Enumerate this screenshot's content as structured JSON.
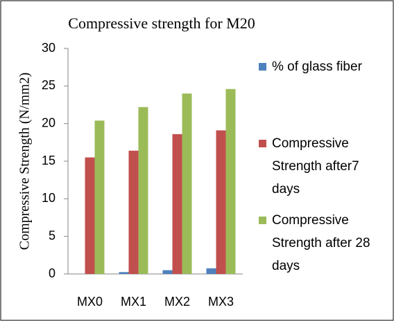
{
  "chart_data": {
    "type": "bar",
    "title": "Compressive strength for M20",
    "y_label": "Compressive Strength (N/mm2)",
    "categories": [
      "MX0",
      "MX1",
      "MX2",
      "MX3"
    ],
    "series": [
      {
        "name": "% of glass fiber",
        "color": "#4f81bd",
        "values": [
          0,
          0.25,
          0.5,
          0.75
        ]
      },
      {
        "name": "Compressive Strength after7 days",
        "color": "#c0504d",
        "values": [
          15.5,
          16.4,
          18.6,
          19.1
        ]
      },
      {
        "name": "Compressive Strength after 28 days",
        "color": "#9bbb59",
        "values": [
          20.4,
          22.2,
          24.0,
          24.6
        ]
      }
    ],
    "ylim": [
      0,
      30
    ],
    "yticks": [
      0,
      5,
      10,
      15,
      20,
      25,
      30
    ]
  }
}
